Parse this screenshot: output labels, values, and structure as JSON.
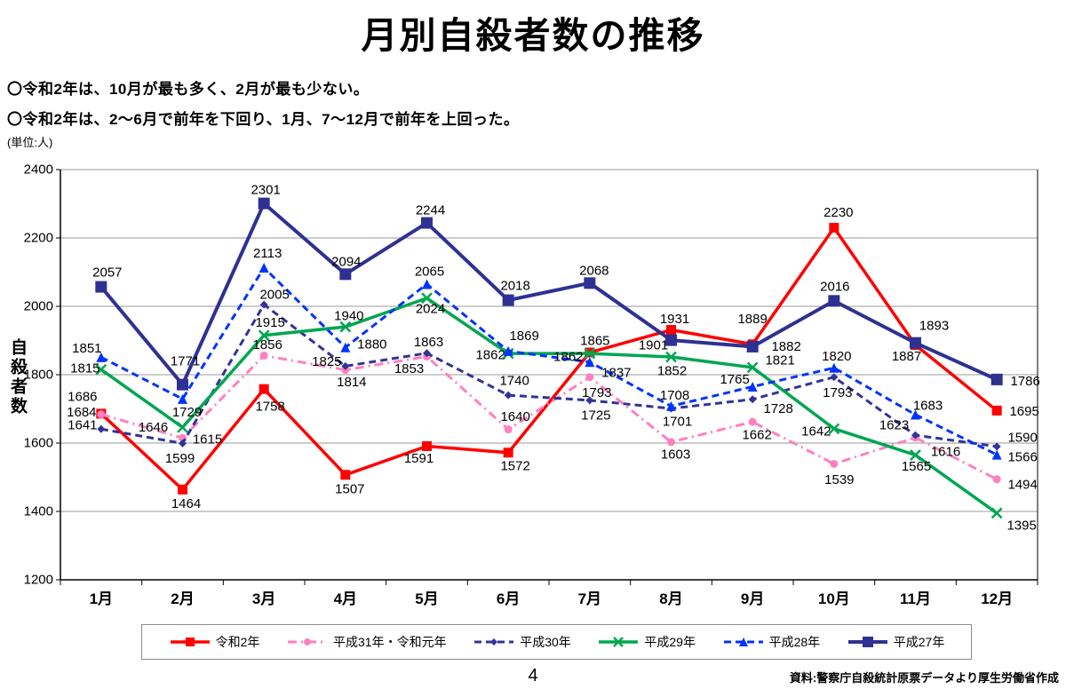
{
  "title": "月別自殺者数の推移",
  "bullets": [
    "〇令和2年は、10月が最も多く、2月が最も少ない。",
    "〇令和2年は、2〜6月で前年を下回り、1月、7〜12月で前年を上回った。"
  ],
  "unit_note": "(単位:人)",
  "y_axis_title": "自殺者数",
  "page_number": "4",
  "source": "資料:警察庁自殺統計原票データより厚生労働省作成",
  "chart_data": {
    "type": "line",
    "title": "月別自殺者数の推移",
    "xlabel": "",
    "ylabel": "自殺者数",
    "categories": [
      "1月",
      "2月",
      "3月",
      "4月",
      "5月",
      "6月",
      "7月",
      "8月",
      "9月",
      "10月",
      "11月",
      "12月"
    ],
    "ylim": [
      1200,
      2400
    ],
    "ytick_step": 200,
    "grid": true,
    "legend_position": "bottom",
    "series": [
      {
        "name": "令和2年",
        "color": "#FF0000",
        "marker": "square",
        "marker_size": 11,
        "dash": "solid",
        "line_width": 3.5,
        "values": [
          1686,
          1464,
          1758,
          1507,
          1591,
          1572,
          1865,
          1931,
          1889,
          2230,
          1887,
          1695
        ],
        "label_offsets": [
          [
            -21,
            -19
          ],
          [
            4,
            16
          ],
          [
            7,
            20
          ],
          [
            5,
            16
          ],
          [
            -9,
            14
          ],
          [
            8,
            15
          ],
          [
            6,
            -13
          ],
          [
            4,
            -12
          ],
          [
            0,
            -28
          ],
          [
            5,
            -17
          ],
          [
            -10,
            13
          ],
          [
            31,
            1
          ]
        ]
      },
      {
        "name": "平成31年・令和元年",
        "color": "#FF80C0",
        "marker": "circle",
        "marker_size": 9,
        "dash": "dashdot",
        "line_width": 3,
        "values": [
          1684,
          1615,
          1856,
          1814,
          1853,
          1640,
          1793,
          1603,
          1662,
          1539,
          1616,
          1494
        ],
        "label_offsets": [
          [
            -22,
            -2
          ],
          [
            28,
            2
          ],
          [
            4,
            -12
          ],
          [
            7,
            14
          ],
          [
            -20,
            14
          ],
          [
            8,
            -14
          ],
          [
            8,
            18
          ],
          [
            5,
            14
          ],
          [
            5,
            15
          ],
          [
            6,
            18
          ],
          [
            34,
            16
          ],
          [
            29,
            6
          ]
        ]
      },
      {
        "name": "平成30年",
        "color": "#333399",
        "marker": "diamond",
        "marker_size": 9,
        "dash": "dash",
        "line_width": 3,
        "values": [
          1641,
          1599,
          2005,
          1825,
          1863,
          1740,
          1725,
          1701,
          1728,
          1793,
          1623,
          1590
        ],
        "label_offsets": [
          [
            -21,
            -4
          ],
          [
            -3,
            17
          ],
          [
            12,
            -11
          ],
          [
            -21,
            -5
          ],
          [
            2,
            -12
          ],
          [
            7,
            -16
          ],
          [
            7,
            17
          ],
          [
            7,
            15
          ],
          [
            29,
            11
          ],
          [
            4,
            18
          ],
          [
            -24,
            -11
          ],
          [
            29,
            -10
          ]
        ]
      },
      {
        "name": "平成29年",
        "color": "#00A651",
        "marker": "x",
        "marker_size": 11,
        "dash": "solid",
        "line_width": 3.5,
        "values": [
          1815,
          1646,
          1915,
          1940,
          2024,
          1862,
          1862,
          1852,
          1821,
          1642,
          1565,
          1395
        ],
        "label_offsets": [
          [
            -18,
            -1
          ],
          [
            -33,
            0
          ],
          [
            7,
            -14
          ],
          [
            4,
            -12
          ],
          [
            4,
            12
          ],
          [
            -20,
            2
          ],
          [
            -24,
            4
          ],
          [
            1,
            16
          ],
          [
            31,
            -8
          ],
          [
            -20,
            3
          ],
          [
            1,
            13
          ],
          [
            28,
            14
          ]
        ]
      },
      {
        "name": "平成28年",
        "color": "#0033FF",
        "marker": "triangle",
        "marker_size": 11,
        "dash": "dash",
        "line_width": 3,
        "values": [
          1851,
          1729,
          2113,
          1880,
          2065,
          1869,
          1837,
          1708,
          1765,
          1820,
          1683,
          1566
        ],
        "label_offsets": [
          [
            -16,
            -10
          ],
          [
            5,
            15
          ],
          [
            4,
            -16
          ],
          [
            30,
            -3
          ],
          [
            3,
            -14
          ],
          [
            18,
            -17
          ],
          [
            30,
            12
          ],
          [
            4,
            -12
          ],
          [
            -20,
            -8
          ],
          [
            3,
            -13
          ],
          [
            14,
            -10
          ],
          [
            29,
            3
          ]
        ]
      },
      {
        "name": "平成27年",
        "color": "#2E3192",
        "marker": "square",
        "marker_size": 13,
        "dash": "solid",
        "line_width": 4,
        "values": [
          2057,
          1771,
          2301,
          2094,
          2244,
          2018,
          2068,
          1901,
          1882,
          2016,
          1893,
          1786
        ],
        "label_offsets": [
          [
            7,
            -16
          ],
          [
            3,
            -26
          ],
          [
            2,
            -15
          ],
          [
            1,
            -14
          ],
          [
            4,
            -14
          ],
          [
            8,
            -16
          ],
          [
            5,
            -14
          ],
          [
            -20,
            6
          ],
          [
            38,
            0
          ],
          [
            1,
            -16
          ],
          [
            21,
            -19
          ],
          [
            32,
            2
          ]
        ]
      }
    ]
  }
}
